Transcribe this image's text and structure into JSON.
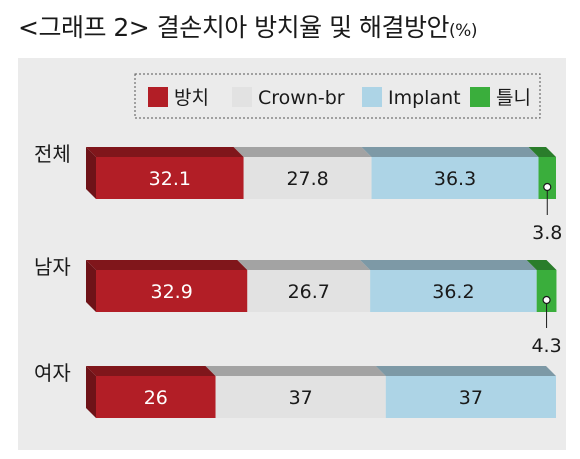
{
  "title": "<그래프 2> 결손치아 방치율 및 해결방안",
  "title_unit": "(%)",
  "chart_data": {
    "type": "bar",
    "orientation": "horizontal",
    "stacked": true,
    "categories": [
      "전체",
      "남자",
      "여자"
    ],
    "series": [
      {
        "name": "방치",
        "values": [
          32.1,
          32.9,
          26
        ],
        "labels": [
          "32.1",
          "32.9",
          "26"
        ],
        "color": "#b21e26"
      },
      {
        "name": "Crown-br",
        "values": [
          27.8,
          26.7,
          37
        ],
        "labels": [
          "27.8",
          "26.7",
          "37"
        ],
        "color": "#e2e2e2"
      },
      {
        "name": "Implant",
        "values": [
          36.3,
          36.2,
          37
        ],
        "labels": [
          "36.3",
          "36.2",
          "37"
        ],
        "color": "#add4e6"
      },
      {
        "name": "틀니",
        "values": [
          3.8,
          4.3,
          0
        ],
        "labels": [
          "3.8",
          "4.3",
          ""
        ],
        "color": "#3aae3c"
      }
    ],
    "xlim": [
      0,
      100
    ],
    "legend_position": "top-right",
    "grid": false
  }
}
